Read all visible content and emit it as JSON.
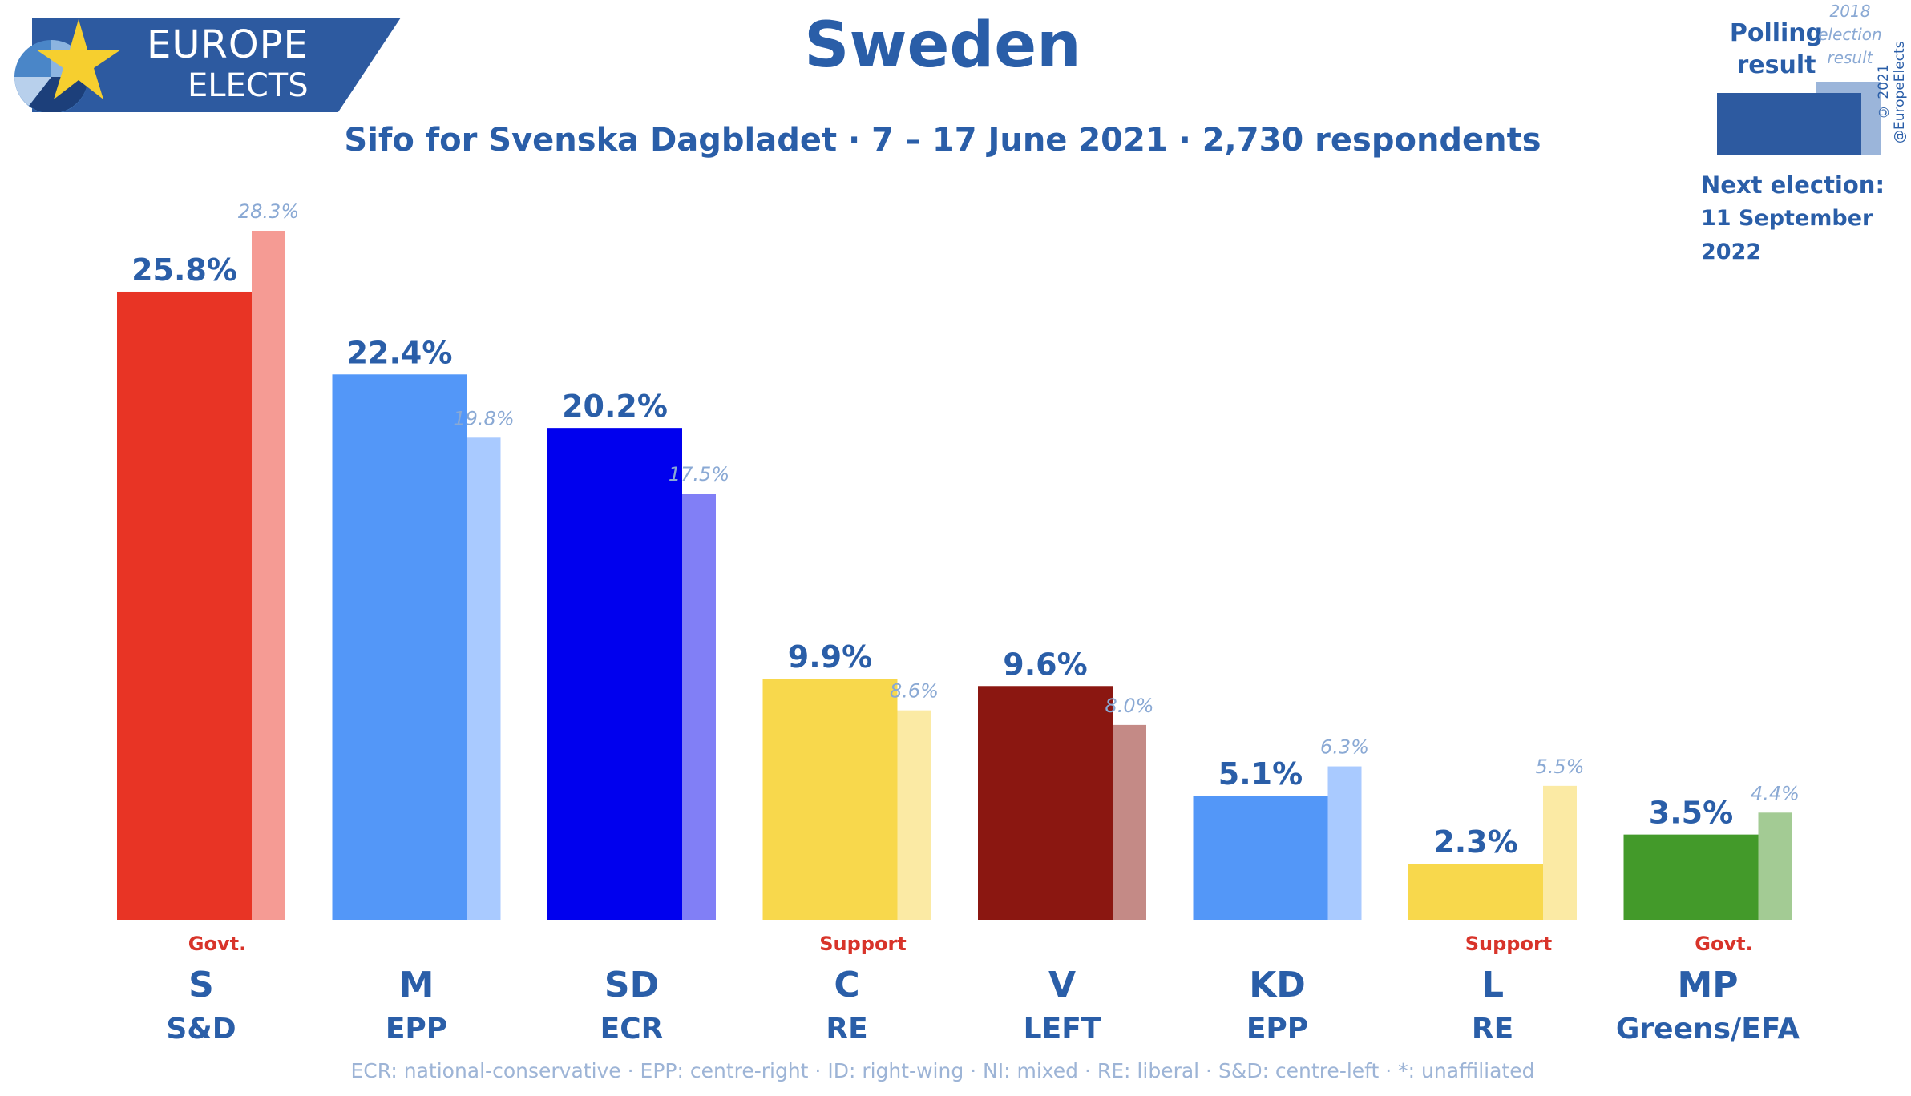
{
  "brand": {
    "line1": "EUROPE",
    "line2": "ELECTS"
  },
  "title": "Sweden",
  "subtitle": "Sifo for Svenska Dagbladet · 7 – 17 June 2021 · 2,730 respondents",
  "legend": {
    "polling_label": "Polling result",
    "election_label": "2018 election result",
    "polling_color": "#2d5aa0",
    "election_color": "#9bb5da"
  },
  "copyright": "© 2021 @EuropeElects",
  "next_election": {
    "label": "Next election:",
    "date": "11 September 2022"
  },
  "footnote": "ECR: national-conservative · EPP: centre-right · ID: right-wing · NI: mixed · RE: liberal · S&D: centre-left · *: unaffiliated",
  "chart_data": {
    "type": "bar",
    "title": "Sweden",
    "ylim": [
      0,
      28.3
    ],
    "grid": false,
    "categories": [
      "S",
      "M",
      "SD",
      "C",
      "V",
      "KD",
      "L",
      "MP"
    ],
    "groups": [
      "S&D",
      "EPP",
      "ECR",
      "RE",
      "LEFT",
      "EPP",
      "RE",
      "Greens/EFA"
    ],
    "status": [
      "Govt.",
      "",
      "",
      "Support",
      "",
      "",
      "Support",
      "Govt."
    ],
    "series": [
      {
        "values": [
          25.8,
          22.4,
          20.2,
          9.9,
          9.6,
          5.1,
          2.3,
          3.5
        ]
      },
      {
        "values": [
          28.3,
          19.8,
          17.5,
          8.6,
          8.0,
          6.3,
          5.5,
          4.4
        ]
      }
    ],
    "poll_labels": [
      "25.8%",
      "22.4%",
      "20.2%",
      "9.9%",
      "9.6%",
      "5.1%",
      "2.3%",
      "3.5%"
    ],
    "election_labels": [
      "28.3%",
      "19.8%",
      "17.5%",
      "8.6%",
      "8.0%",
      "6.3%",
      "5.5%",
      "4.4%"
    ],
    "colors": [
      "#e83425",
      "#5397f8",
      "#0000ee",
      "#f8d84c",
      "#8b1711",
      "#5397f8",
      "#f8d84c",
      "#439a2a"
    ],
    "light_colors": [
      "#f59b94",
      "#a9caff",
      "#817ff6",
      "#fbeaa4",
      "#c48a86",
      "#a9caff",
      "#fbeaa4",
      "#a3cb94"
    ],
    "status_color": "#d8342a",
    "label_color": "#2a5ea8",
    "election_label_color": "#8aa9d4"
  }
}
